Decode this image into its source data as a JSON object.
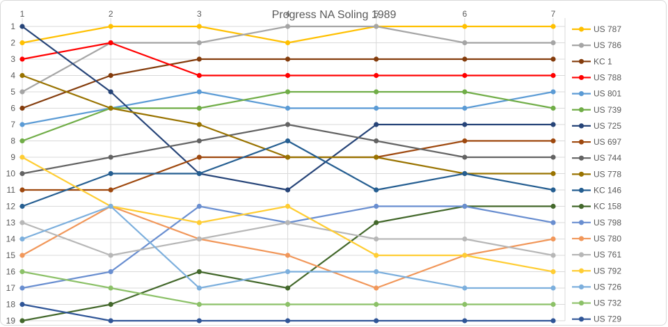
{
  "chart_data": {
    "type": "line",
    "title": "Progress NA Soling 1989",
    "xlabel": "",
    "ylabel": "",
    "x_categories": [
      "1",
      "2",
      "3",
      "4",
      "5",
      "6",
      "7"
    ],
    "y_ticks": [
      "1",
      "2",
      "3",
      "4",
      "5",
      "6",
      "7",
      "8",
      "9",
      "10",
      "11",
      "12",
      "13",
      "14",
      "15",
      "16",
      "17",
      "18",
      "19"
    ],
    "y_axis": {
      "min": 1,
      "max": 19,
      "reversed": true,
      "meaning": "rank (1 = leader), ties share rank per competition ranking"
    },
    "grid": true,
    "legend_position": "right",
    "text_color": "#595959",
    "grid_color": "#d9d9d9",
    "series": [
      {
        "name": "US 787",
        "color": "#FFC000",
        "ranks": [
          2,
          1,
          1,
          2,
          1,
          1,
          1
        ]
      },
      {
        "name": "US 786",
        "color": "#A5A5A5",
        "ranks": [
          5,
          2,
          2,
          1,
          1,
          2,
          2
        ]
      },
      {
        "name": "KC 1",
        "color": "#843C0C",
        "ranks": [
          6,
          4,
          3,
          3,
          3,
          3,
          3
        ]
      },
      {
        "name": "US 788",
        "color": "#FF0000",
        "ranks": [
          3,
          2,
          4,
          4,
          4,
          4,
          4
        ]
      },
      {
        "name": "US 801",
        "color": "#5B9BD5",
        "ranks": [
          7,
          6,
          5,
          6,
          6,
          6,
          5
        ]
      },
      {
        "name": "US 739",
        "color": "#70AD47",
        "ranks": [
          8,
          6,
          6,
          5,
          5,
          5,
          6
        ]
      },
      {
        "name": "US 725",
        "color": "#264478",
        "ranks": [
          1,
          5,
          10,
          11,
          7,
          7,
          7
        ]
      },
      {
        "name": "US 697",
        "color": "#9E480E",
        "ranks": [
          11,
          11,
          9,
          9,
          9,
          8,
          8
        ]
      },
      {
        "name": "US 744",
        "color": "#636363",
        "ranks": [
          10,
          9,
          8,
          7,
          8,
          9,
          9
        ]
      },
      {
        "name": "US 778",
        "color": "#997300",
        "ranks": [
          4,
          6,
          7,
          9,
          9,
          10,
          10
        ]
      },
      {
        "name": "KC 146",
        "color": "#255E91",
        "ranks": [
          12,
          10,
          10,
          8,
          11,
          10,
          11
        ]
      },
      {
        "name": "KC 158",
        "color": "#43682B",
        "ranks": [
          19,
          18,
          16,
          17,
          13,
          12,
          12
        ]
      },
      {
        "name": "US 798",
        "color": "#698ED0",
        "ranks": [
          17,
          16,
          12,
          13,
          12,
          12,
          13
        ]
      },
      {
        "name": "US 780",
        "color": "#F1975A",
        "ranks": [
          15,
          12,
          14,
          15,
          17,
          15,
          14
        ]
      },
      {
        "name": "US 761",
        "color": "#B7B7B7",
        "ranks": [
          13,
          15,
          14,
          13,
          14,
          14,
          15
        ]
      },
      {
        "name": "US 792",
        "color": "#FFCD33",
        "ranks": [
          9,
          12,
          13,
          12,
          15,
          15,
          16
        ]
      },
      {
        "name": "US 726",
        "color": "#7CAFDD",
        "ranks": [
          14,
          12,
          17,
          16,
          16,
          17,
          17
        ]
      },
      {
        "name": "US 732",
        "color": "#8CC168",
        "ranks": [
          16,
          17,
          18,
          18,
          18,
          18,
          18
        ]
      },
      {
        "name": "US 729",
        "color": "#2F5597",
        "ranks": [
          18,
          19,
          19,
          19,
          19,
          19,
          19
        ]
      }
    ]
  }
}
